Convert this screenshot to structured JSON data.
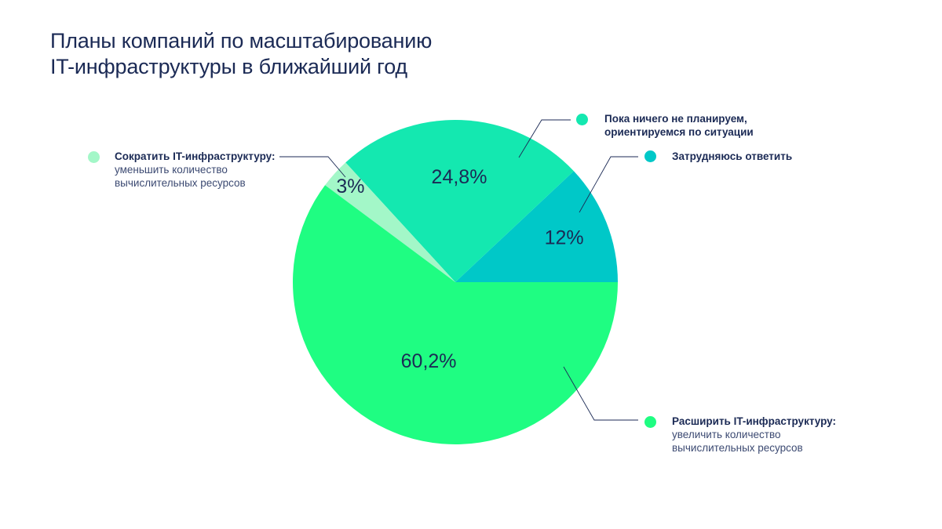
{
  "header": {
    "title_line1": "Планы компаний по масштабированию",
    "title_line2": "IT-инфраструктуры в ближайший год"
  },
  "legend": {
    "reduce_head": "Сократить IT-инфраструктуру:",
    "reduce_sub_line1": "уменьшить количество",
    "reduce_sub_line2": "вычислительных ресурсов",
    "none_line1": "Пока ничего не планируем,",
    "none_line2": "ориентируемся по ситуации",
    "unsure": "Затрудняюсь ответить",
    "expand_head": "Расширить IT-инфраструктуру:",
    "expand_sub_line1": "увеличить количество",
    "expand_sub_line2": "вычислительных ресурсов"
  },
  "colors": {
    "text": "#1b2a55",
    "leader": "#1b2a55"
  },
  "chart_data": {
    "type": "pie",
    "title": "Планы компаний по масштабированию IT-инфраструктуры в ближайший год",
    "unit": "%",
    "start_angle_deg": 0,
    "direction": "counterclockwise",
    "slices": [
      {
        "label": "Затрудняюсь ответить",
        "value": 12,
        "display": "12%",
        "color": "#00c8c8"
      },
      {
        "label": "Пока ничего не планируем, ориентируемся по ситуации",
        "value": 24.8,
        "display": "24,8%",
        "color": "#14e8b0"
      },
      {
        "label": "Сократить IT-инфраструктуру: уменьшить количество вычислительных ресурсов",
        "value": 3,
        "display": "3%",
        "color": "#a3f7c8"
      },
      {
        "label": "Расширить IT-инфраструктуру: увеличить количество вычислительных ресурсов",
        "value": 60.2,
        "display": "60,2%",
        "color": "#1ffd82"
      }
    ]
  }
}
